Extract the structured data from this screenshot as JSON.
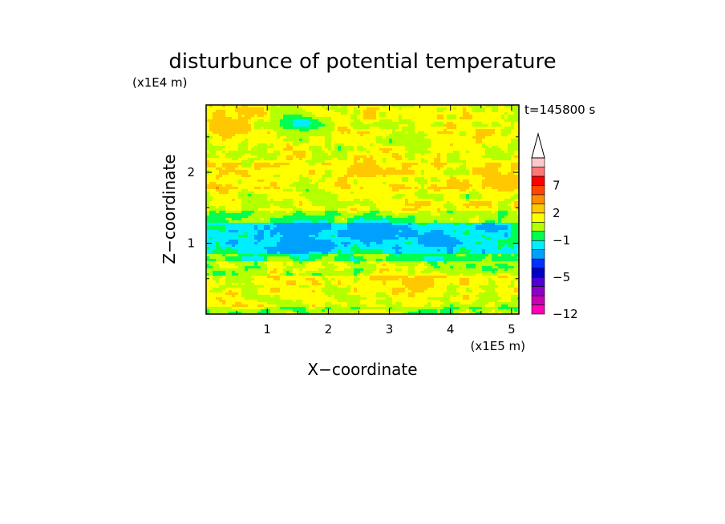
{
  "chart_data": {
    "type": "heatmap",
    "title": "disturbunce of potential temperature",
    "xlabel": "X−coordinate",
    "ylabel": "Z−coordinate",
    "x_unit": "(x1E5 m)",
    "y_unit": "(x1E4 m)",
    "time_label": "t=145800 s",
    "xlim": [
      0,
      5.12
    ],
    "ylim": [
      0,
      2.95
    ],
    "x_ticks": [
      1,
      2,
      3,
      4,
      5
    ],
    "y_ticks": [
      1,
      2
    ],
    "x_tick_labels": [
      "1",
      "2",
      "3",
      "4",
      "5"
    ],
    "y_tick_labels": [
      "1",
      "2"
    ],
    "colorbar": {
      "boundaries": [
        -12,
        -11,
        -9,
        -7,
        -5,
        -4,
        -3,
        -2,
        -1,
        0,
        1,
        2,
        3,
        5,
        7,
        9,
        11
      ],
      "labeled_ticks": [
        "7",
        "2",
        "−1",
        "−5",
        "−12"
      ],
      "colors": [
        "#ff00b4",
        "#c800b4",
        "#8c00c8",
        "#5000d2",
        "#0000c8",
        "#0032ff",
        "#00a0ff",
        "#00eeff",
        "#00ff50",
        "#b4ff00",
        "#ffff00",
        "#ffc800",
        "#ff8c00",
        "#ff4600",
        "#ff0000",
        "#ff7878",
        "#ffc8c8"
      ],
      "extend": "max"
    },
    "bands": [
      {
        "z": [
          0.0,
          0.1
        ],
        "value": 0.5
      },
      {
        "z": [
          0.1,
          0.4
        ],
        "value": 1.2
      },
      {
        "z": [
          0.4,
          0.55
        ],
        "value": 1.8
      },
      {
        "z": [
          0.55,
          0.75
        ],
        "value": 0.8
      },
      {
        "z": [
          0.75,
          0.85
        ],
        "value": -0.3
      },
      {
        "z": [
          0.85,
          1.3
        ],
        "value": -1.5
      },
      {
        "z": [
          1.3,
          1.45
        ],
        "value": 0.3
      },
      {
        "z": [
          1.45,
          1.75
        ],
        "value": 1.2
      },
      {
        "z": [
          1.75,
          2.15
        ],
        "value": 1.6
      },
      {
        "z": [
          2.15,
          2.55
        ],
        "value": 1.2
      },
      {
        "z": [
          2.55,
          2.95
        ],
        "value": 1.4
      }
    ],
    "features": [
      {
        "x": 0.35,
        "z": 2.65,
        "value": 3.0
      },
      {
        "x": 2.6,
        "z": 2.05,
        "value": 2.6
      },
      {
        "x": 4.8,
        "z": 1.85,
        "value": 3.0
      },
      {
        "x": 1.55,
        "z": 2.7,
        "value": -1.5
      },
      {
        "x": 1.6,
        "z": 1.2,
        "value": -3.0
      },
      {
        "x": 2.8,
        "z": 1.2,
        "value": -3.0
      },
      {
        "x": 1.5,
        "z": 0.95,
        "value": -3.0
      },
      {
        "x": 3.8,
        "z": 1.05,
        "value": -3.0
      },
      {
        "x": 3.5,
        "z": 0.45,
        "value": 2.4
      }
    ]
  }
}
